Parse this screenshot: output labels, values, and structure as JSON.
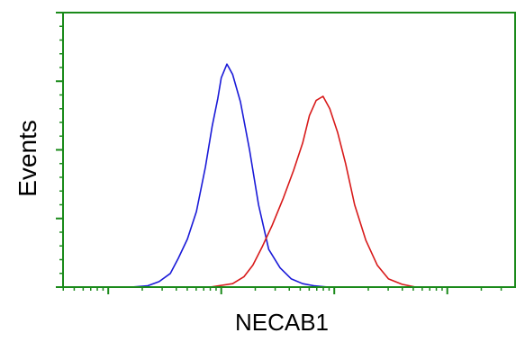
{
  "chart_data": {
    "type": "line",
    "title": "",
    "xlabel": "NECAB1",
    "ylabel": "Events",
    "xscale": "log",
    "grid": false,
    "legend": "none",
    "frame_color": "#1a8a1a",
    "series": [
      {
        "color": "#1a1ad8",
        "x": [
          1.2,
          1.35,
          1.45,
          1.55,
          1.62,
          1.7,
          1.78,
          1.86,
          1.92,
          1.97,
          2.0,
          2.05,
          2.1,
          2.17,
          2.25,
          2.33,
          2.42,
          2.52,
          2.62,
          2.72,
          2.82,
          2.95
        ],
        "y": [
          0,
          0.02,
          0.08,
          0.2,
          0.42,
          0.7,
          1.1,
          1.75,
          2.35,
          2.75,
          3.05,
          3.25,
          3.1,
          2.7,
          2.0,
          1.2,
          0.55,
          0.28,
          0.12,
          0.05,
          0.02,
          0
        ]
      },
      {
        "color": "#d81a1a",
        "x": [
          1.9,
          2.1,
          2.2,
          2.28,
          2.36,
          2.45,
          2.55,
          2.64,
          2.72,
          2.78,
          2.84,
          2.9,
          2.96,
          3.03,
          3.1,
          3.18,
          3.28,
          3.38,
          3.48,
          3.6,
          3.72
        ],
        "y": [
          0,
          0.05,
          0.15,
          0.32,
          0.58,
          0.9,
          1.3,
          1.7,
          2.1,
          2.5,
          2.72,
          2.78,
          2.6,
          2.25,
          1.8,
          1.2,
          0.68,
          0.32,
          0.12,
          0.04,
          0
        ]
      }
    ],
    "xlim": [
      0.6,
      4.6
    ],
    "ylim": [
      0,
      4
    ]
  }
}
